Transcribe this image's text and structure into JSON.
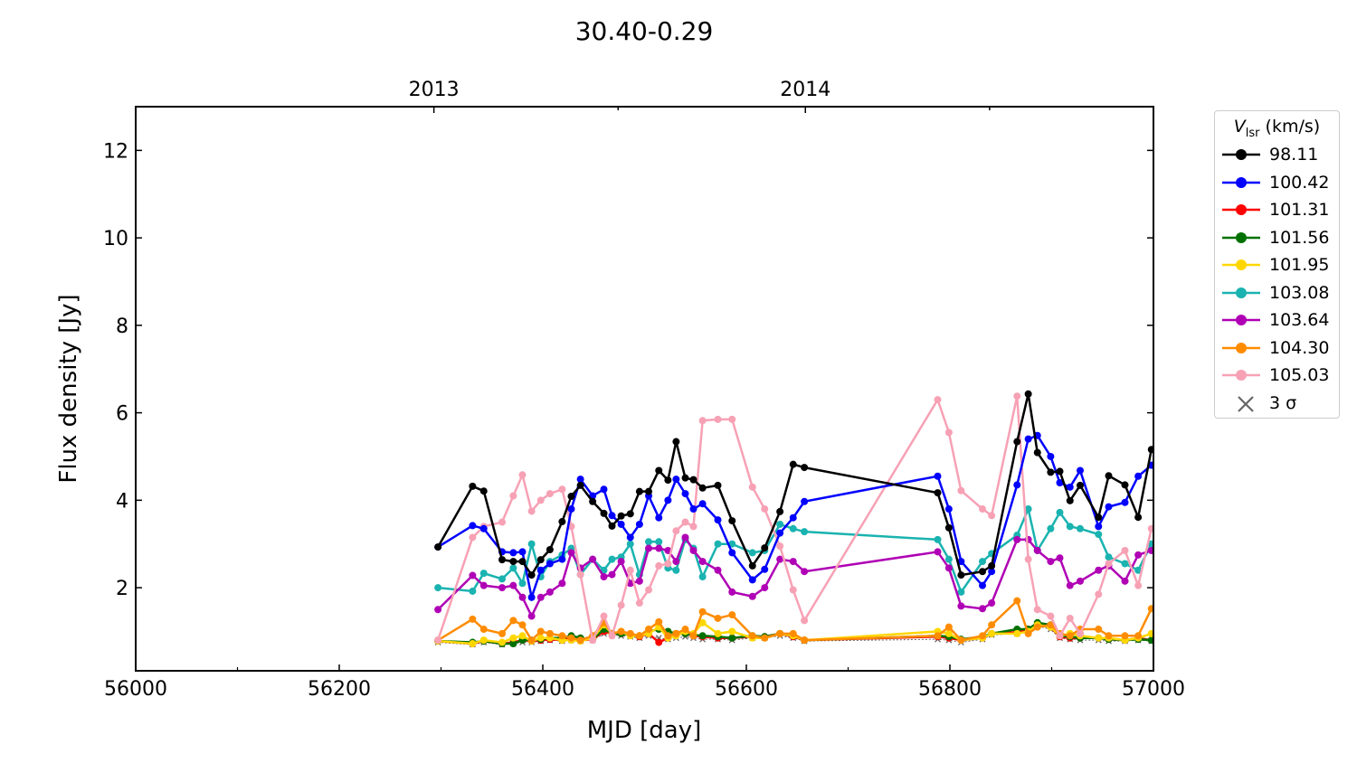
{
  "chart_data": {
    "type": "line",
    "title": "30.40-0.29",
    "xlabel": "MJD [day]",
    "ylabel": "Flux density [Jy]",
    "xlim": [
      56000,
      57000
    ],
    "ylim": [
      0.1,
      13
    ],
    "xticks": [
      56000,
      56200,
      56400,
      56600,
      56800,
      57000
    ],
    "xtick_labels": [
      "56000",
      "56200",
      "56400",
      "56600",
      "56800",
      "57000"
    ],
    "yticks": [
      2,
      4,
      6,
      8,
      10,
      12
    ],
    "ytick_labels": [
      "2",
      "4",
      "6",
      "8",
      "10",
      "12"
    ],
    "top_axis": {
      "ticks": [
        56293,
        56474,
        56658,
        56839
      ],
      "labels": [
        "2013",
        "",
        "2014",
        ""
      ]
    },
    "grid": false,
    "legend": {
      "title_var": "V",
      "title_sub": "lsr",
      "title_unit": " (km/s)",
      "placement": "outside-right"
    },
    "x": [
      56297,
      56331,
      56342,
      56360,
      56371,
      56380,
      56389,
      56398,
      56407,
      56419,
      56428,
      56437,
      56449,
      56460,
      56468,
      56477,
      56486,
      56495,
      56504,
      56514,
      56523,
      56531,
      56540,
      56548,
      56557,
      56572,
      56586,
      56606,
      56618,
      56633,
      56646,
      56657,
      56788,
      56799,
      56811,
      56832,
      56841,
      56866,
      56877,
      56886,
      56899,
      56908,
      56918,
      56928,
      56946,
      56956,
      56972,
      56985,
      56998
    ],
    "series": [
      {
        "name": "98.11",
        "color": "#000000",
        "values": [
          2.93,
          4.32,
          4.21,
          2.64,
          2.6,
          2.6,
          2.29,
          2.64,
          2.87,
          3.51,
          4.09,
          4.34,
          3.97,
          3.7,
          3.41,
          3.64,
          3.69,
          4.2,
          4.2,
          4.68,
          4.46,
          5.34,
          4.51,
          4.47,
          4.28,
          4.34,
          3.53,
          2.5,
          2.91,
          3.74,
          4.82,
          4.75,
          4.17,
          3.37,
          2.29,
          2.37,
          2.5,
          5.34,
          6.43,
          5.09,
          4.64,
          4.66,
          3.99,
          4.34,
          3.61,
          4.56,
          4.35,
          3.61,
          5.16
        ]
      },
      {
        "name": "100.42",
        "color": "#0000ff",
        "values": [
          2.93,
          3.42,
          3.35,
          2.82,
          2.8,
          2.82,
          1.78,
          2.4,
          2.55,
          2.65,
          3.8,
          4.48,
          4.1,
          4.25,
          3.65,
          3.45,
          3.15,
          3.45,
          4.1,
          3.6,
          4.0,
          4.48,
          4.15,
          3.8,
          3.92,
          3.55,
          2.8,
          2.18,
          2.42,
          3.25,
          3.6,
          3.97,
          4.55,
          3.8,
          2.6,
          2.05,
          2.37,
          4.35,
          5.4,
          5.48,
          5.0,
          4.4,
          4.3,
          4.68,
          3.4,
          3.85,
          3.95,
          4.55,
          4.8
        ]
      },
      {
        "name": "101.31",
        "color": "#ff0000",
        "values": [
          0.78,
          0.72,
          0.78,
          0.72,
          0.75,
          0.8,
          0.78,
          0.8,
          0.82,
          0.8,
          0.85,
          0.8,
          0.82,
          1.0,
          0.95,
          0.95,
          0.92,
          0.88,
          0.95,
          0.75,
          0.85,
          0.95,
          0.95,
          0.9,
          0.88,
          0.85,
          0.85,
          0.88,
          0.88,
          0.95,
          0.88,
          0.8,
          0.88,
          0.85,
          0.8,
          0.85,
          0.95,
          0.98,
          1.05,
          1.15,
          1.1,
          0.88,
          0.85,
          0.85,
          0.85,
          0.82,
          0.8,
          0.85,
          0.8
        ]
      },
      {
        "name": "101.56",
        "color": "#007000",
        "values": [
          0.78,
          0.75,
          0.78,
          0.72,
          0.72,
          0.8,
          0.8,
          0.82,
          0.85,
          0.85,
          0.9,
          0.85,
          0.82,
          1.05,
          0.95,
          0.95,
          0.92,
          0.9,
          1.0,
          1.05,
          1.0,
          0.95,
          0.95,
          0.92,
          0.9,
          0.88,
          0.85,
          0.9,
          0.88,
          0.95,
          0.9,
          0.8,
          0.9,
          0.88,
          0.82,
          0.88,
          0.95,
          1.05,
          1.05,
          1.2,
          1.15,
          0.9,
          0.88,
          0.85,
          0.85,
          0.82,
          0.8,
          0.82,
          0.8
        ]
      },
      {
        "name": "101.95",
        "color": "#ffd700",
        "values": [
          0.78,
          0.72,
          0.8,
          0.75,
          0.85,
          0.9,
          0.78,
          0.85,
          0.85,
          0.8,
          0.8,
          0.78,
          0.85,
          1.15,
          0.95,
          1.0,
          0.9,
          0.9,
          0.95,
          1.1,
          0.85,
          0.9,
          1.0,
          0.95,
          1.2,
          0.95,
          1.0,
          0.85,
          0.85,
          0.95,
          0.9,
          0.8,
          1.0,
          0.95,
          0.8,
          0.85,
          0.95,
          0.95,
          1.0,
          1.15,
          1.1,
          0.9,
          0.95,
          0.9,
          0.85,
          0.85,
          0.8,
          0.85,
          0.95
        ]
      },
      {
        "name": "103.08",
        "color": "#1ab3b0",
        "values": [
          2.0,
          1.92,
          2.33,
          2.2,
          2.45,
          2.1,
          3.0,
          2.25,
          2.6,
          2.75,
          2.9,
          2.3,
          2.65,
          2.4,
          2.65,
          2.7,
          3.0,
          2.3,
          3.05,
          3.05,
          2.45,
          2.4,
          3.1,
          2.9,
          2.25,
          3.0,
          3.0,
          2.8,
          2.85,
          3.45,
          3.35,
          3.28,
          3.1,
          2.65,
          1.9,
          2.6,
          2.78,
          3.2,
          3.8,
          2.85,
          3.35,
          3.72,
          3.4,
          3.35,
          3.22,
          2.7,
          2.55,
          2.4,
          3.0
        ]
      },
      {
        "name": "103.64",
        "color": "#b000b5",
        "values": [
          1.5,
          2.28,
          2.05,
          2.0,
          2.05,
          1.78,
          1.35,
          1.78,
          1.9,
          2.1,
          2.8,
          2.45,
          2.65,
          2.25,
          2.3,
          2.6,
          2.1,
          2.15,
          2.9,
          2.9,
          2.85,
          2.6,
          3.15,
          2.85,
          2.6,
          2.4,
          1.9,
          1.8,
          2.0,
          2.65,
          2.6,
          2.37,
          2.82,
          2.45,
          1.58,
          1.52,
          1.65,
          3.1,
          3.1,
          2.85,
          2.6,
          2.68,
          2.05,
          2.15,
          2.4,
          2.5,
          2.15,
          2.75,
          2.85
        ]
      },
      {
        "name": "104.30",
        "color": "#ff8c00",
        "values": [
          0.8,
          1.28,
          1.05,
          0.95,
          1.25,
          1.15,
          0.8,
          1.0,
          0.95,
          0.9,
          0.85,
          0.8,
          0.9,
          1.2,
          0.95,
          1.0,
          0.95,
          0.9,
          1.05,
          1.22,
          0.9,
          0.95,
          1.05,
          0.9,
          1.45,
          1.3,
          1.38,
          0.9,
          0.85,
          0.95,
          0.95,
          0.8,
          0.9,
          1.1,
          0.8,
          0.9,
          1.15,
          1.7,
          0.95,
          1.1,
          1.15,
          0.95,
          0.9,
          1.05,
          1.05,
          0.9,
          0.9,
          0.9,
          1.52
        ]
      },
      {
        "name": "105.03",
        "color": "#f7a1b5",
        "values": [
          0.8,
          3.15,
          3.4,
          3.5,
          4.1,
          4.58,
          3.75,
          4.0,
          4.15,
          4.25,
          3.4,
          2.3,
          0.8,
          1.35,
          0.9,
          1.6,
          2.4,
          1.65,
          1.95,
          2.5,
          2.55,
          3.3,
          3.5,
          3.4,
          5.82,
          5.85,
          5.85,
          4.3,
          3.8,
          2.95,
          1.95,
          1.25,
          6.3,
          5.55,
          4.22,
          3.8,
          3.65,
          6.38,
          2.65,
          1.5,
          1.35,
          0.9,
          1.3,
          0.95,
          1.85,
          2.55,
          2.85,
          2.05,
          3.35
        ]
      },
      {
        "name": "3 σ",
        "color": "#666666",
        "marker": "x",
        "values": [
          0.75,
          0.7,
          0.75,
          0.7,
          0.72,
          0.75,
          0.75,
          0.78,
          0.8,
          0.78,
          0.8,
          0.78,
          0.8,
          0.95,
          0.92,
          0.9,
          0.88,
          0.85,
          0.9,
          0.85,
          0.82,
          0.85,
          0.88,
          0.85,
          0.82,
          0.82,
          0.8,
          0.85,
          0.85,
          0.9,
          0.85,
          0.78,
          0.82,
          0.8,
          0.75,
          0.82,
          0.92,
          0.95,
          1.02,
          1.12,
          1.05,
          0.85,
          0.82,
          0.8,
          0.8,
          0.78,
          0.78,
          0.8,
          0.78
        ]
      }
    ]
  }
}
